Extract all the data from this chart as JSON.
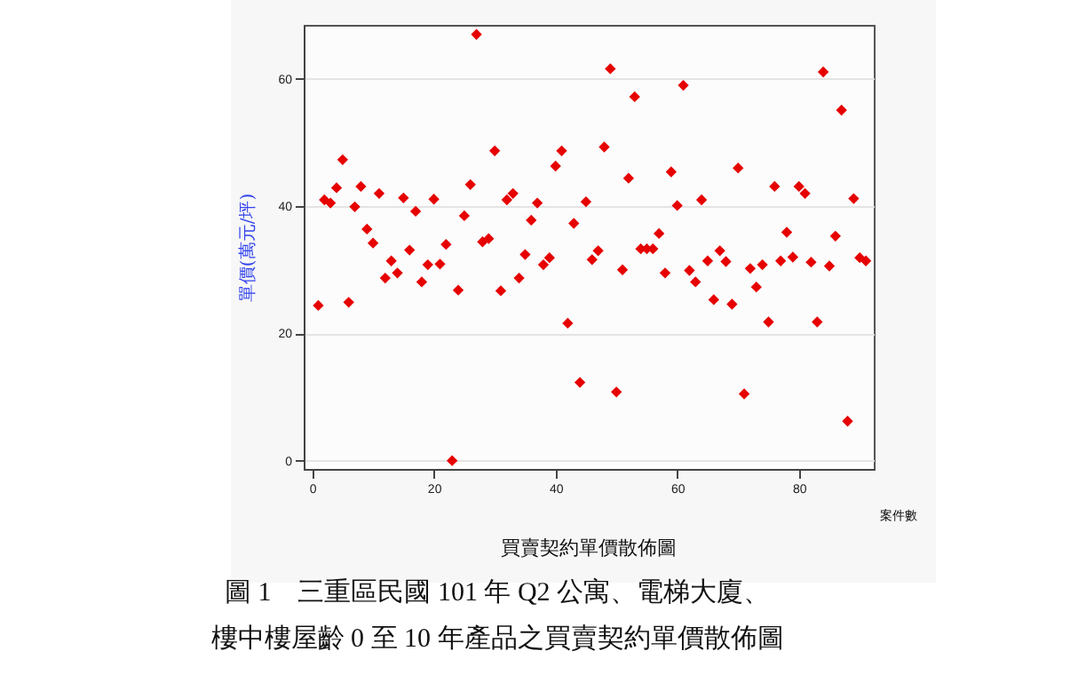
{
  "chart_data": {
    "type": "scatter",
    "title": "買賣契約單價散佈圖",
    "xlabel": "案件數",
    "ylabel": "單價(萬元/坪)",
    "annotations": [
      "圖 1　三重區民國 101 年 Q2 公寓、電梯大廈、",
      "樓中樓屋齡 0 至 10 年產品之買賣契約單價散佈圖"
    ],
    "x": [
      1,
      2,
      3,
      4,
      5,
      6,
      7,
      8,
      9,
      10,
      11,
      12,
      13,
      14,
      15,
      16,
      17,
      18,
      19,
      20,
      21,
      22,
      23,
      24,
      25,
      26,
      27,
      28,
      29,
      30,
      31,
      32,
      33,
      34,
      35,
      36,
      37,
      38,
      39,
      40,
      41,
      42,
      43,
      44,
      45,
      46,
      47,
      48,
      49,
      50,
      51,
      52,
      53,
      54,
      55,
      56,
      57,
      58,
      59,
      60,
      61,
      62,
      63,
      64,
      65,
      66,
      67,
      68,
      69,
      70,
      71,
      72,
      73,
      74,
      75,
      76,
      77,
      78,
      79,
      80,
      81,
      82,
      83,
      84,
      85,
      86,
      87,
      88,
      89,
      90,
      91
    ],
    "series": [
      {
        "color": "#e60000",
        "values": [
          24.4,
          41.0,
          40.5,
          42.9,
          47.3,
          24.9,
          39.9,
          43.1,
          36.4,
          34.2,
          42.0,
          28.7,
          31.4,
          29.5,
          41.3,
          33.1,
          39.2,
          28.1,
          30.8,
          41.1,
          30.9,
          34.0,
          0,
          26.8,
          38.5,
          43.4,
          67.0,
          34.4,
          34.9,
          48.7,
          26.7,
          41.0,
          42.0,
          28.7,
          32.4,
          37.8,
          40.5,
          30.8,
          31.9,
          46.3,
          48.7,
          21.6,
          37.3,
          12.3,
          40.7,
          31.6,
          33.0,
          49.3,
          61.6,
          10.8,
          30.0,
          44.4,
          57.2,
          33.3,
          33.3,
          33.3,
          35.7,
          29.5,
          45.4,
          40.1,
          59.0,
          29.9,
          28.1,
          41.0,
          31.4,
          25.3,
          33.0,
          31.3,
          24.6,
          46.0,
          10.5,
          30.2,
          27.3,
          30.8,
          21.8,
          43.1,
          31.4,
          35.9,
          32.0,
          43.1,
          42.0,
          31.2,
          21.8,
          61.1,
          30.6,
          35.3,
          55.1,
          6.2,
          41.2,
          31.9,
          31.4
        ]
      }
    ],
    "xlim": [
      -1.4,
      92.3
    ],
    "ylim": [
      -1.3,
      68.5
    ],
    "xticks": [
      0,
      20,
      40,
      60,
      80
    ],
    "yticks": [
      0,
      20,
      40,
      60
    ],
    "grid": "y",
    "marker": "diamond"
  }
}
